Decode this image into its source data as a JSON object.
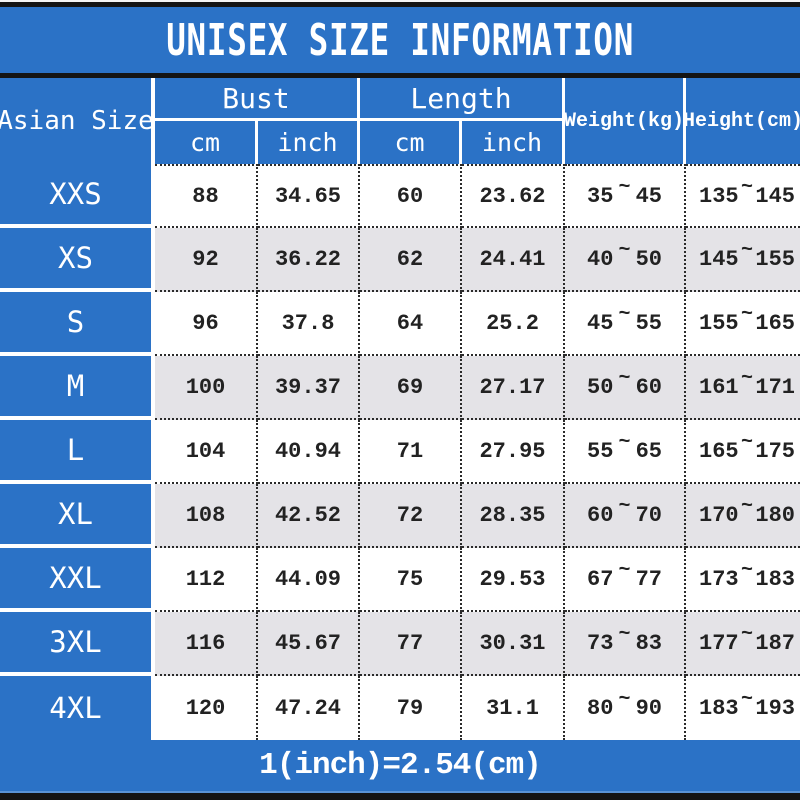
{
  "header": {
    "size_col": "Asian Size",
    "bust": "Bust",
    "length": "Length",
    "weight": "Weight(kg)",
    "height": "Height(cm)",
    "unit_cm": "cm",
    "unit_inch": "inch"
  },
  "symbols": {
    "range_tilde": "~"
  },
  "colors": {
    "primary_blue": "#2b72c6",
    "row_alt_gray": "#e4e3e7",
    "row_white": "#ffffff",
    "border_black": "#141414"
  },
  "chart_data": {
    "type": "table",
    "title": "UNISEX SIZE INFORMATION",
    "footnote": "1(inch)=2.54(cm)",
    "columns": [
      "Asian Size",
      "Bust (cm)",
      "Bust (inch)",
      "Length (cm)",
      "Length (inch)",
      "Weight (kg) min~max",
      "Height (cm) min~max"
    ],
    "rows": [
      {
        "size": "XXS",
        "bust_cm": "88",
        "bust_inch": "34.65",
        "length_cm": "60",
        "length_inch": "23.62",
        "weight_min": "35",
        "weight_max": "45",
        "height_min": "135",
        "height_max": "145"
      },
      {
        "size": "XS",
        "bust_cm": "92",
        "bust_inch": "36.22",
        "length_cm": "62",
        "length_inch": "24.41",
        "weight_min": "40",
        "weight_max": "50",
        "height_min": "145",
        "height_max": "155"
      },
      {
        "size": "S",
        "bust_cm": "96",
        "bust_inch": "37.8",
        "length_cm": "64",
        "length_inch": "25.2",
        "weight_min": "45",
        "weight_max": "55",
        "height_min": "155",
        "height_max": "165"
      },
      {
        "size": "M",
        "bust_cm": "100",
        "bust_inch": "39.37",
        "length_cm": "69",
        "length_inch": "27.17",
        "weight_min": "50",
        "weight_max": "60",
        "height_min": "161",
        "height_max": "171"
      },
      {
        "size": "L",
        "bust_cm": "104",
        "bust_inch": "40.94",
        "length_cm": "71",
        "length_inch": "27.95",
        "weight_min": "55",
        "weight_max": "65",
        "height_min": "165",
        "height_max": "175"
      },
      {
        "size": "XL",
        "bust_cm": "108",
        "bust_inch": "42.52",
        "length_cm": "72",
        "length_inch": "28.35",
        "weight_min": "60",
        "weight_max": "70",
        "height_min": "170",
        "height_max": "180"
      },
      {
        "size": "XXL",
        "bust_cm": "112",
        "bust_inch": "44.09",
        "length_cm": "75",
        "length_inch": "29.53",
        "weight_min": "67",
        "weight_max": "77",
        "height_min": "173",
        "height_max": "183"
      },
      {
        "size": "3XL",
        "bust_cm": "116",
        "bust_inch": "45.67",
        "length_cm": "77",
        "length_inch": "30.31",
        "weight_min": "73",
        "weight_max": "83",
        "height_min": "177",
        "height_max": "187"
      },
      {
        "size": "4XL",
        "bust_cm": "120",
        "bust_inch": "47.24",
        "length_cm": "79",
        "length_inch": "31.1",
        "weight_min": "80",
        "weight_max": "90",
        "height_min": "183",
        "height_max": "193"
      }
    ]
  }
}
